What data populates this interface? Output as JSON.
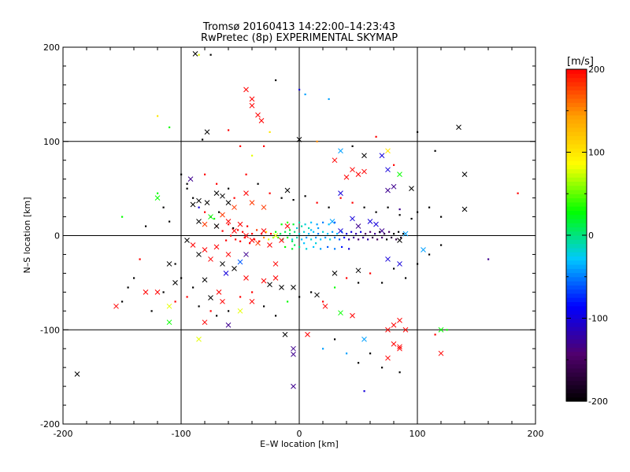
{
  "chart_data": {
    "type": "scatter",
    "title": "Tromsø 20160413 14:22:00–14:23:43",
    "subtitle": "RwPretec (8p) EXPERIMENTAL SKYMAP",
    "xlabel": "E–W location [km]",
    "ylabel": "N–S location [km]",
    "xlim": [
      -200,
      200
    ],
    "ylim": [
      -200,
      200
    ],
    "xticks": [
      -200,
      -100,
      0,
      100,
      200
    ],
    "yticks": [
      -200,
      -100,
      0,
      100,
      200
    ],
    "grid_lines": [
      -100,
      0,
      100
    ],
    "colorbar": {
      "label": "[m/s]",
      "range": [
        -200,
        200
      ],
      "ticks": [
        200,
        100,
        0,
        -100,
        -200
      ],
      "colors": [
        "#000000",
        "#50006e",
        "#0000ff",
        "#00c8ff",
        "#00ff00",
        "#ffff00",
        "#ffa000",
        "#ff0000"
      ]
    },
    "crosses": [
      [
        -88,
        193,
        -200
      ],
      [
        -78,
        110,
        -200
      ],
      [
        -92,
        60,
        -130
      ],
      [
        -120,
        40,
        30
      ],
      [
        -90,
        33,
        -200
      ],
      [
        -85,
        37,
        -200
      ],
      [
        -78,
        35,
        -200
      ],
      [
        -70,
        45,
        -200
      ],
      [
        -65,
        42,
        -200
      ],
      [
        -60,
        35,
        -200
      ],
      [
        -55,
        30,
        180
      ],
      [
        -45,
        45,
        200
      ],
      [
        -40,
        35,
        180
      ],
      [
        -30,
        30,
        180
      ],
      [
        -85,
        15,
        -200
      ],
      [
        -80,
        12,
        180
      ],
      [
        -75,
        20,
        30
      ],
      [
        -70,
        10,
        -200
      ],
      [
        -65,
        22,
        180
      ],
      [
        -60,
        15,
        200
      ],
      [
        -55,
        5,
        200
      ],
      [
        -50,
        12,
        200
      ],
      [
        -45,
        0,
        200
      ],
      [
        -40,
        -5,
        200
      ],
      [
        -35,
        -8,
        180
      ],
      [
        -30,
        5,
        200
      ],
      [
        -25,
        -10,
        200
      ],
      [
        -20,
        0,
        80
      ],
      [
        -15,
        -5,
        200
      ],
      [
        -10,
        10,
        200
      ],
      [
        -95,
        -5,
        -200
      ],
      [
        -90,
        -10,
        200
      ],
      [
        -85,
        -20,
        -200
      ],
      [
        -80,
        -15,
        200
      ],
      [
        -75,
        -25,
        200
      ],
      [
        -70,
        -12,
        200
      ],
      [
        -65,
        -30,
        -200
      ],
      [
        -60,
        -20,
        200
      ],
      [
        -55,
        -35,
        -200
      ],
      [
        -50,
        -28,
        -60
      ],
      [
        -105,
        -50,
        -200
      ],
      [
        -110,
        -30,
        -200
      ],
      [
        -120,
        -60,
        200
      ],
      [
        -130,
        -60,
        200
      ],
      [
        -155,
        -75,
        200
      ],
      [
        -110,
        -75,
        80
      ],
      [
        -80,
        -47,
        -200
      ],
      [
        -75,
        -66,
        -200
      ],
      [
        -68,
        -60,
        200
      ],
      [
        -65,
        -70,
        200
      ],
      [
        -62,
        -40,
        -100
      ],
      [
        -45,
        -45,
        200
      ],
      [
        -40,
        -70,
        200
      ],
      [
        -30,
        -48,
        200
      ],
      [
        -20,
        -45,
        200
      ],
      [
        -50,
        -80,
        80
      ],
      [
        -60,
        -95,
        -130
      ],
      [
        -85,
        -110,
        80
      ],
      [
        -110,
        -92,
        30
      ],
      [
        -80,
        -92,
        200
      ],
      [
        -45,
        155,
        200
      ],
      [
        -40,
        145,
        200
      ],
      [
        -40,
        138,
        200
      ],
      [
        -35,
        128,
        200
      ],
      [
        -32,
        122,
        200
      ],
      [
        0,
        102,
        -200
      ],
      [
        35,
        90,
        -40
      ],
      [
        55,
        85,
        -200
      ],
      [
        75,
        90,
        100
      ],
      [
        70,
        85,
        -100
      ],
      [
        30,
        80,
        200
      ],
      [
        45,
        70,
        200
      ],
      [
        50,
        65,
        200
      ],
      [
        55,
        68,
        200
      ],
      [
        40,
        62,
        200
      ],
      [
        75,
        70,
        -100
      ],
      [
        85,
        65,
        30
      ],
      [
        80,
        52,
        -130
      ],
      [
        75,
        48,
        -130
      ],
      [
        95,
        50,
        -200
      ],
      [
        -10,
        48,
        -200
      ],
      [
        35,
        45,
        -100
      ],
      [
        28,
        15,
        -40
      ],
      [
        35,
        5,
        -100
      ],
      [
        45,
        18,
        -100
      ],
      [
        50,
        10,
        -130
      ],
      [
        60,
        15,
        -100
      ],
      [
        65,
        12,
        -100
      ],
      [
        70,
        5,
        -130
      ],
      [
        90,
        2,
        -40
      ],
      [
        85,
        -5,
        -200
      ],
      [
        105,
        -15,
        -40
      ],
      [
        75,
        -25,
        -100
      ],
      [
        85,
        -30,
        -100
      ],
      [
        140,
        28,
        -200
      ],
      [
        135,
        115,
        -200
      ],
      [
        140,
        65,
        -200
      ],
      [
        -5,
        -55,
        -200
      ],
      [
        -15,
        -55,
        -200
      ],
      [
        -25,
        -52,
        -200
      ],
      [
        -12,
        -105,
        -200
      ],
      [
        -5,
        -120,
        -130
      ],
      [
        -5,
        -126,
        -130
      ],
      [
        -5,
        -160,
        -130
      ],
      [
        7,
        -105,
        200
      ],
      [
        15,
        -63,
        -200
      ],
      [
        22,
        -75,
        200
      ],
      [
        35,
        -82,
        30
      ],
      [
        45,
        -85,
        200
      ],
      [
        55,
        -110,
        -40
      ],
      [
        75,
        -100,
        200
      ],
      [
        80,
        -95,
        200
      ],
      [
        85,
        -90,
        200
      ],
      [
        80,
        -115,
        200
      ],
      [
        85,
        -120,
        200
      ],
      [
        90,
        -100,
        200
      ],
      [
        85,
        -118,
        200
      ],
      [
        75,
        -130,
        200
      ],
      [
        120,
        -100,
        30
      ],
      [
        120,
        -125,
        200
      ],
      [
        50,
        -37,
        -200
      ],
      [
        30,
        -40,
        -200
      ],
      [
        -188,
        -147,
        -200
      ],
      [
        -45,
        -20,
        -130
      ],
      [
        -20,
        -30,
        200
      ]
    ],
    "dots": [
      [
        -120,
        45,
        30
      ],
      [
        -115,
        30,
        -200
      ],
      [
        -110,
        15,
        -200
      ],
      [
        -105,
        -30,
        -200
      ],
      [
        -100,
        -45,
        -200
      ],
      [
        -95,
        50,
        -200
      ],
      [
        -90,
        40,
        -200
      ],
      [
        -85,
        30,
        -100
      ],
      [
        -80,
        25,
        200
      ],
      [
        -75,
        20,
        -200
      ],
      [
        -72,
        18,
        30
      ],
      [
        -70,
        10,
        200
      ],
      [
        -68,
        25,
        -200
      ],
      [
        -65,
        5,
        200
      ],
      [
        -62,
        -5,
        200
      ],
      [
        -60,
        12,
        200
      ],
      [
        -58,
        0,
        200
      ],
      [
        -56,
        8,
        -200
      ],
      [
        -54,
        -4,
        200
      ],
      [
        -52,
        6,
        200
      ],
      [
        -50,
        -6,
        200
      ],
      [
        -48,
        4,
        200
      ],
      [
        -46,
        -2,
        200
      ],
      [
        -44,
        10,
        200
      ],
      [
        -42,
        -8,
        200
      ],
      [
        -40,
        2,
        200
      ],
      [
        -38,
        -4,
        200
      ],
      [
        -36,
        6,
        180
      ],
      [
        -34,
        -6,
        200
      ],
      [
        -32,
        2,
        200
      ],
      [
        -30,
        -2,
        150
      ],
      [
        -28,
        4,
        100
      ],
      [
        -26,
        -4,
        80
      ],
      [
        -24,
        2,
        200
      ],
      [
        -22,
        -2,
        60
      ],
      [
        -20,
        4,
        30
      ],
      [
        -18,
        -2,
        20
      ],
      [
        -16,
        2,
        10
      ],
      [
        -14,
        -4,
        0
      ],
      [
        -12,
        4,
        10
      ],
      [
        -10,
        -2,
        20
      ],
      [
        -8,
        2,
        0
      ],
      [
        -6,
        -4,
        -20
      ],
      [
        -4,
        4,
        0
      ],
      [
        -2,
        -2,
        -10
      ],
      [
        0,
        2,
        -20
      ],
      [
        2,
        -4,
        -30
      ],
      [
        4,
        4,
        -20
      ],
      [
        6,
        -2,
        -40
      ],
      [
        8,
        2,
        -30
      ],
      [
        10,
        -4,
        -20
      ],
      [
        12,
        4,
        -30
      ],
      [
        14,
        -2,
        -40
      ],
      [
        16,
        2,
        -50
      ],
      [
        18,
        -4,
        -30
      ],
      [
        20,
        4,
        -20
      ],
      [
        22,
        -2,
        -40
      ],
      [
        24,
        2,
        -30
      ],
      [
        26,
        -4,
        -20
      ],
      [
        28,
        4,
        -40
      ],
      [
        30,
        -2,
        -50
      ],
      [
        32,
        2,
        -30
      ],
      [
        34,
        -4,
        -60
      ],
      [
        36,
        4,
        -40
      ],
      [
        38,
        -2,
        -80
      ],
      [
        40,
        2,
        -100
      ],
      [
        42,
        -4,
        -120
      ],
      [
        44,
        4,
        -100
      ],
      [
        46,
        -2,
        -130
      ],
      [
        48,
        2,
        -120
      ],
      [
        50,
        -4,
        -140
      ],
      [
        52,
        4,
        -100
      ],
      [
        54,
        -2,
        -130
      ],
      [
        56,
        2,
        -150
      ],
      [
        58,
        -4,
        -120
      ],
      [
        60,
        4,
        -140
      ],
      [
        62,
        -2,
        -160
      ],
      [
        64,
        2,
        -130
      ],
      [
        66,
        -4,
        -150
      ],
      [
        68,
        4,
        -200
      ],
      [
        70,
        -2,
        -140
      ],
      [
        72,
        2,
        -160
      ],
      [
        74,
        -4,
        -200
      ],
      [
        76,
        4,
        -150
      ],
      [
        78,
        -2,
        -170
      ],
      [
        80,
        2,
        -200
      ],
      [
        82,
        -4,
        -160
      ],
      [
        84,
        4,
        -200
      ],
      [
        86,
        -2,
        -180
      ],
      [
        88,
        2,
        -200
      ],
      [
        -15,
        12,
        30
      ],
      [
        -10,
        14,
        40
      ],
      [
        -5,
        12,
        20
      ],
      [
        0,
        14,
        -10
      ],
      [
        5,
        12,
        -20
      ],
      [
        10,
        14,
        -30
      ],
      [
        15,
        12,
        -40
      ],
      [
        20,
        14,
        -50
      ],
      [
        25,
        12,
        -30
      ],
      [
        30,
        14,
        -60
      ],
      [
        -12,
        -12,
        30
      ],
      [
        -6,
        -14,
        20
      ],
      [
        0,
        -12,
        0
      ],
      [
        6,
        -14,
        -20
      ],
      [
        12,
        -12,
        -30
      ],
      [
        18,
        -14,
        -40
      ],
      [
        24,
        -12,
        -60
      ],
      [
        30,
        -14,
        -50
      ],
      [
        36,
        -12,
        -80
      ],
      [
        42,
        -14,
        -100
      ],
      [
        -2,
        8,
        -20
      ],
      [
        2,
        10,
        -10
      ],
      [
        4,
        -8,
        -30
      ],
      [
        8,
        8,
        -10
      ],
      [
        -4,
        -10,
        10
      ],
      [
        10,
        6,
        -30
      ],
      [
        14,
        -8,
        -20
      ],
      [
        -8,
        6,
        20
      ],
      [
        16,
        8,
        -40
      ],
      [
        -6,
        -6,
        10
      ],
      [
        -100,
        65,
        -200
      ],
      [
        -95,
        55,
        -200
      ],
      [
        -80,
        65,
        200
      ],
      [
        -70,
        55,
        200
      ],
      [
        -60,
        50,
        -200
      ],
      [
        -55,
        40,
        200
      ],
      [
        -45,
        65,
        200
      ],
      [
        -35,
        55,
        -200
      ],
      [
        -25,
        45,
        200
      ],
      [
        -15,
        40,
        -200
      ],
      [
        -5,
        38,
        -200
      ],
      [
        5,
        42,
        -200
      ],
      [
        15,
        35,
        200
      ],
      [
        25,
        30,
        -200
      ],
      [
        35,
        40,
        200
      ],
      [
        45,
        35,
        200
      ],
      [
        55,
        30,
        -200
      ],
      [
        65,
        25,
        -200
      ],
      [
        75,
        30,
        -200
      ],
      [
        85,
        22,
        -200
      ],
      [
        95,
        18,
        -200
      ],
      [
        100,
        25,
        -200
      ],
      [
        110,
        30,
        -200
      ],
      [
        120,
        20,
        -200
      ],
      [
        85,
        28,
        -130
      ],
      [
        -130,
        10,
        -200
      ],
      [
        -135,
        -25,
        200
      ],
      [
        -140,
        -45,
        -200
      ],
      [
        -145,
        -55,
        -200
      ],
      [
        -150,
        -70,
        -200
      ],
      [
        -125,
        -80,
        -200
      ],
      [
        -115,
        -60,
        -200
      ],
      [
        -105,
        -70,
        200
      ],
      [
        -95,
        -65,
        200
      ],
      [
        -90,
        -55,
        -200
      ],
      [
        -85,
        -75,
        -200
      ],
      [
        -75,
        -80,
        200
      ],
      [
        -70,
        -85,
        -200
      ],
      [
        -60,
        -80,
        -200
      ],
      [
        -50,
        -65,
        200
      ],
      [
        -40,
        -60,
        200
      ],
      [
        -30,
        -75,
        -200
      ],
      [
        -20,
        -85,
        -200
      ],
      [
        -10,
        -70,
        30
      ],
      [
        0,
        -65,
        -200
      ],
      [
        10,
        -60,
        -200
      ],
      [
        20,
        -70,
        200
      ],
      [
        30,
        -55,
        30
      ],
      [
        40,
        -45,
        200
      ],
      [
        50,
        -50,
        -200
      ],
      [
        60,
        -40,
        200
      ],
      [
        70,
        -50,
        -200
      ],
      [
        80,
        -35,
        -200
      ],
      [
        90,
        -45,
        -200
      ],
      [
        100,
        -30,
        -200
      ],
      [
        110,
        -20,
        -200
      ],
      [
        120,
        -10,
        -200
      ],
      [
        160,
        -25,
        -130
      ],
      [
        185,
        45,
        200
      ],
      [
        -150,
        20,
        30
      ],
      [
        -82,
        102,
        -200
      ],
      [
        -60,
        112,
        200
      ],
      [
        -50,
        95,
        200
      ],
      [
        -40,
        85,
        80
      ],
      [
        -25,
        110,
        100
      ],
      [
        -20,
        165,
        -200
      ],
      [
        0,
        155,
        -100
      ],
      [
        5,
        150,
        -40
      ],
      [
        15,
        100,
        150
      ],
      [
        25,
        145,
        -40
      ],
      [
        -120,
        127,
        100
      ],
      [
        -85,
        192,
        80
      ],
      [
        -75,
        192,
        -200
      ],
      [
        -110,
        115,
        30
      ],
      [
        -30,
        95,
        200
      ],
      [
        45,
        95,
        -200
      ],
      [
        65,
        105,
        200
      ],
      [
        80,
        75,
        200
      ],
      [
        100,
        110,
        -200
      ],
      [
        115,
        90,
        -200
      ],
      [
        20,
        -120,
        -40
      ],
      [
        30,
        -110,
        -200
      ],
      [
        40,
        -125,
        -40
      ],
      [
        50,
        -135,
        -200
      ],
      [
        60,
        -125,
        -200
      ],
      [
        70,
        -140,
        -200
      ],
      [
        85,
        -145,
        -200
      ],
      [
        55,
        -165,
        -100
      ],
      [
        115,
        -105,
        200
      ],
      [
        125,
        -100,
        30
      ]
    ]
  }
}
